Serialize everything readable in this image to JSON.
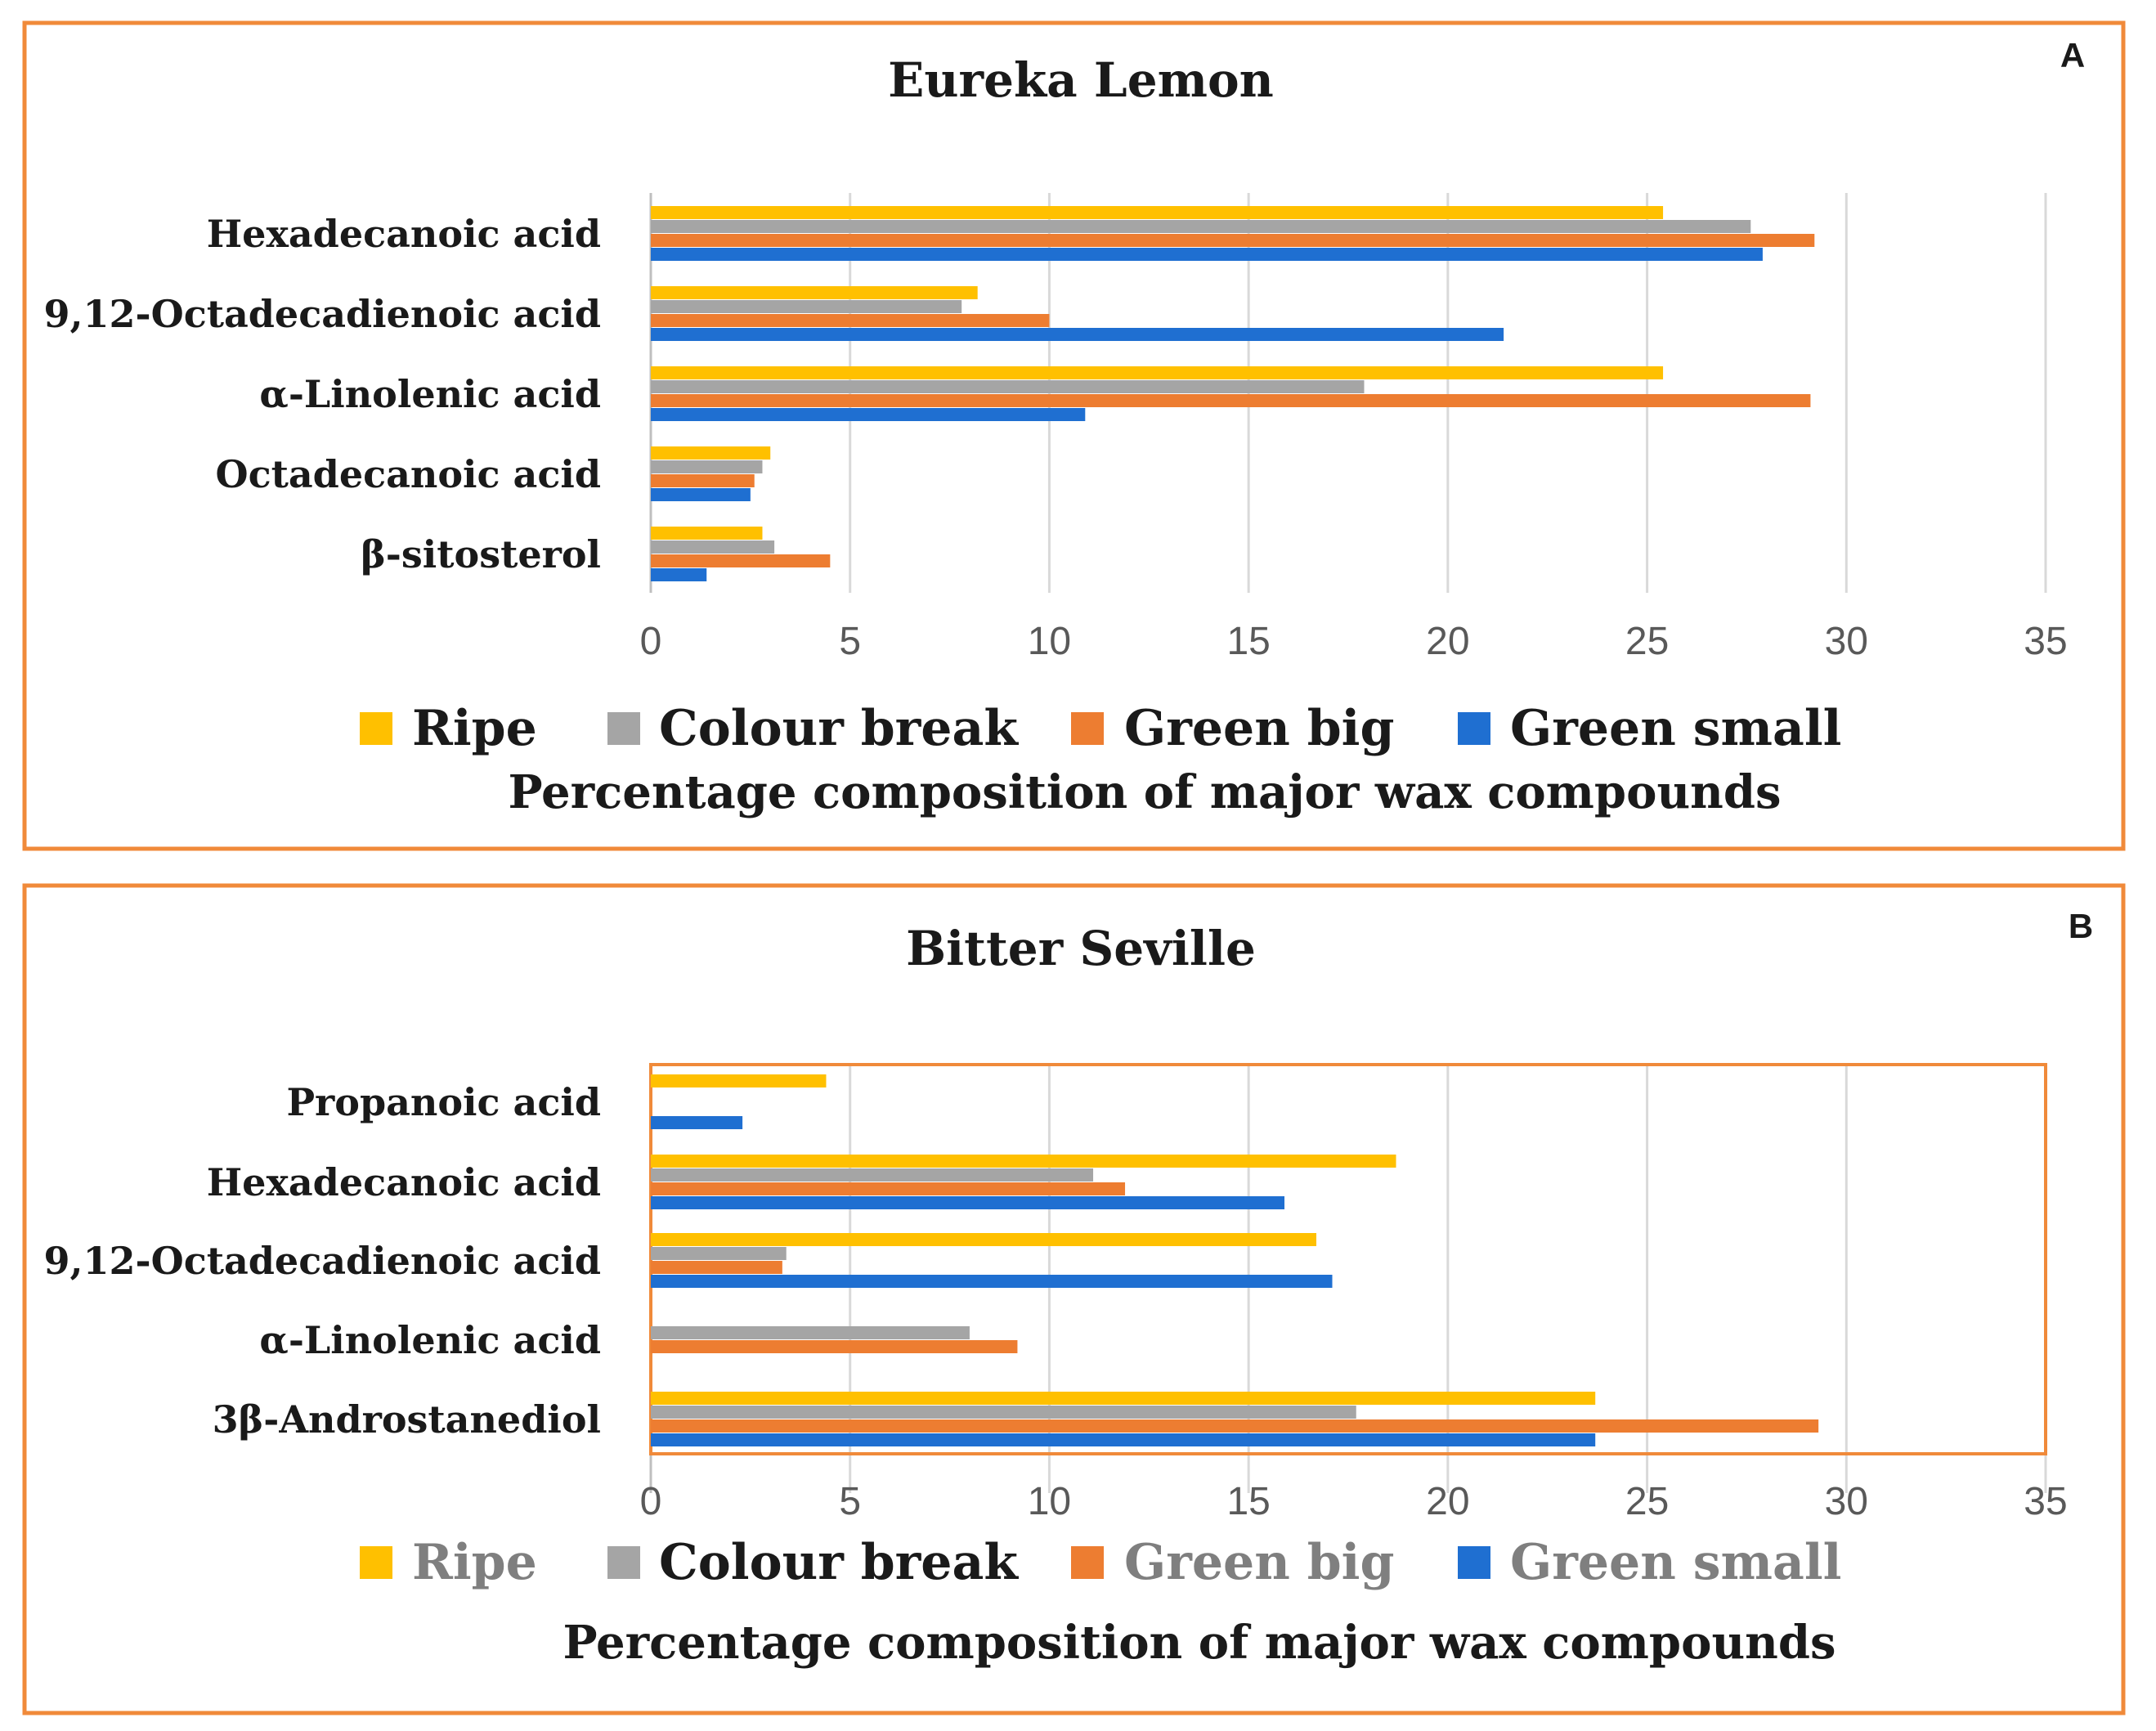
{
  "colors": {
    "ripe": "#FFC000",
    "colour_break": "#A5A5A5",
    "green_big": "#ED7D31",
    "green_small": "#1F6FD1",
    "frame": "#F08A3A",
    "grid": "#D9D9D9",
    "text": "#1a1a1a",
    "axis_text": "#595959"
  },
  "chart_data": [
    {
      "type": "bar",
      "orientation": "horizontal",
      "panel_letter": "A",
      "title": "Eureka Lemon",
      "categories": [
        "Hexadecanoic acid",
        "9,12-Octadecadienoic acid",
        "α-Linolenic acid",
        "Octadecanoic acid",
        "β-sitosterol"
      ],
      "series": [
        {
          "name": "Ripe",
          "values": [
            25.4,
            8.2,
            25.4,
            3.0,
            2.8
          ]
        },
        {
          "name": "Colour break",
          "values": [
            27.6,
            7.8,
            17.9,
            2.8,
            3.1
          ]
        },
        {
          "name": "Green big",
          "values": [
            29.2,
            10.0,
            29.1,
            2.6,
            4.5
          ]
        },
        {
          "name": "Green small",
          "values": [
            27.9,
            21.4,
            10.9,
            2.5,
            1.4
          ]
        }
      ],
      "xlim": [
        0,
        35
      ],
      "xticks": [
        "0",
        "5",
        "10",
        "15",
        "20",
        "25",
        "30",
        "35"
      ],
      "xlabel": "Percentage composition of major wax compounds",
      "legend_entries": [
        "Ripe",
        "Colour break",
        "Green big",
        "Green small"
      ],
      "legend_position": "bottom",
      "grid": true
    },
    {
      "type": "bar",
      "orientation": "horizontal",
      "panel_letter": "B",
      "title": "Bitter Seville",
      "categories": [
        "Propanoic acid",
        "Hexadecanoic acid",
        "9,12-Octadecadienoic acid",
        "α-Linolenic acid",
        "3β-Androstanediol"
      ],
      "series": [
        {
          "name": "Ripe",
          "values": [
            4.4,
            18.7,
            16.7,
            0,
            23.7
          ]
        },
        {
          "name": "Colour break",
          "values": [
            0,
            11.1,
            3.4,
            8.0,
            17.7
          ]
        },
        {
          "name": "Green big",
          "values": [
            0,
            11.9,
            3.3,
            9.2,
            29.3
          ]
        },
        {
          "name": "Green small",
          "values": [
            2.3,
            15.9,
            17.1,
            0,
            23.7
          ]
        }
      ],
      "xlim": [
        0,
        35
      ],
      "xticks": [
        "0",
        "5",
        "10",
        "15",
        "20",
        "25",
        "30",
        "35"
      ],
      "xlabel": "Percentage composition of major wax compounds",
      "legend_entries": [
        "Ripe",
        "Colour break",
        "Green big",
        "Green small"
      ],
      "legend_position": "bottom",
      "grid": true
    }
  ]
}
